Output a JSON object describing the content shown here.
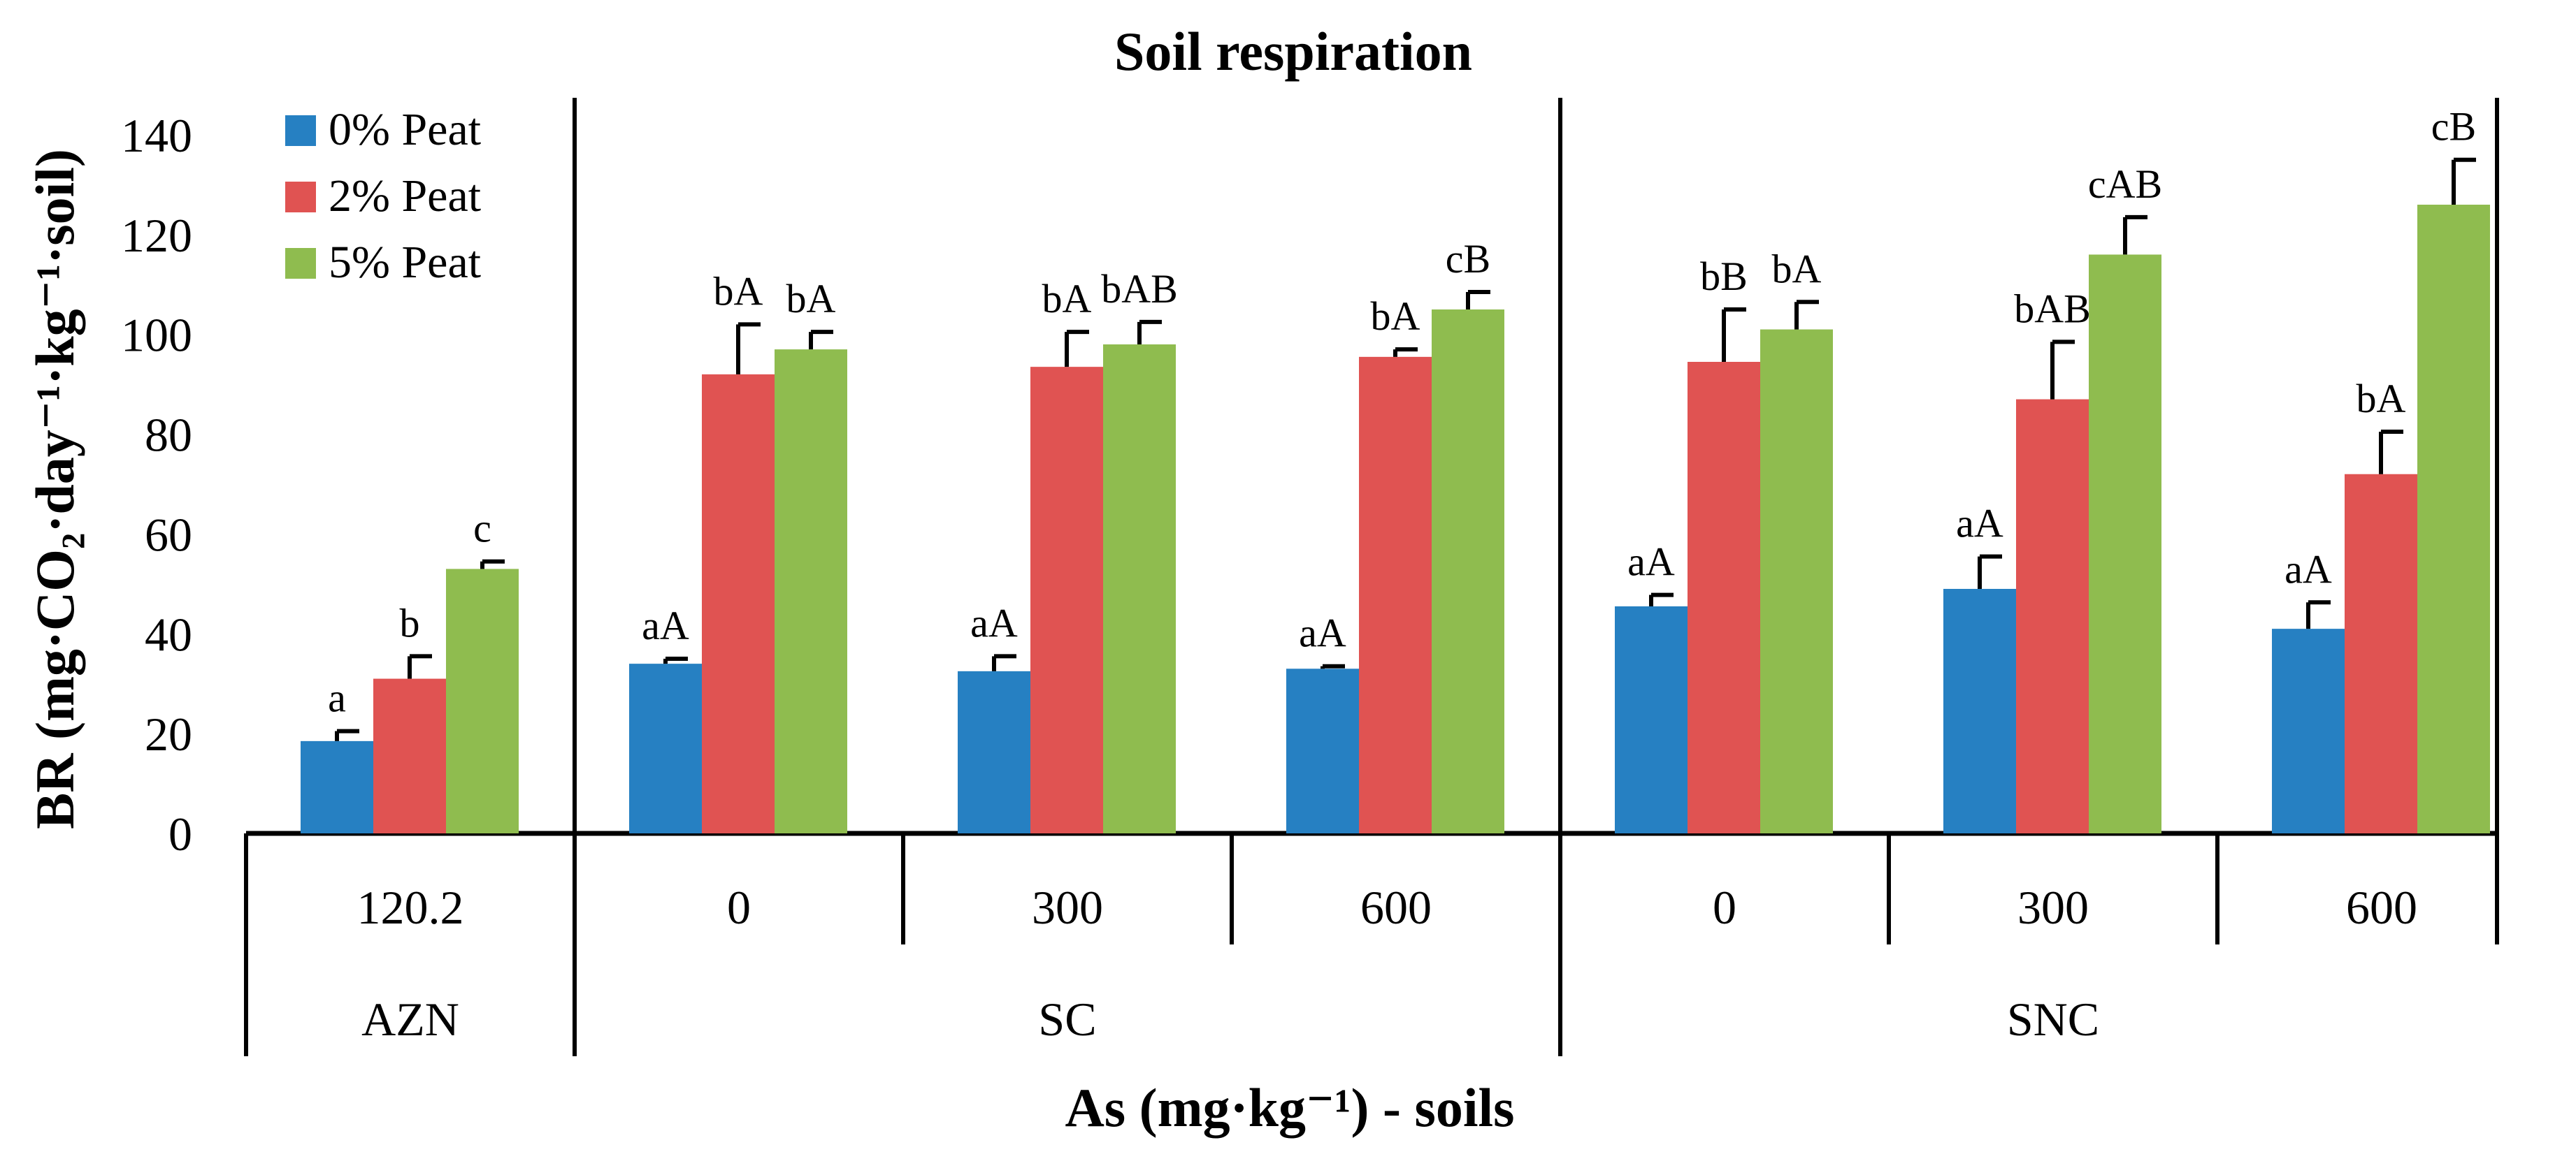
{
  "chart_data": {
    "type": "bar",
    "title": "Soil respiration",
    "xlabel": "As (mg·kg⁻¹) - soils",
    "ylabel": "BR (mg·CO₂·day⁻¹·kg⁻¹·soil)",
    "ylim": [
      0,
      140
    ],
    "yticks": [
      "0",
      "20",
      "40",
      "60",
      "80",
      "100",
      "120",
      "140"
    ],
    "legend_position": "top-left",
    "groups": [
      {
        "name": "AZN",
        "categories": [
          "120.2"
        ]
      },
      {
        "name": "SC",
        "categories": [
          "0",
          "300",
          "600"
        ]
      },
      {
        "name": "SNC",
        "categories": [
          "0",
          "300",
          "600"
        ]
      }
    ],
    "series": [
      {
        "name": "0% Peat",
        "color": "#2680c2",
        "values": [
          18.5,
          34,
          32.5,
          33,
          45.5,
          49,
          41
        ],
        "errors": [
          2,
          1,
          3,
          0.5,
          2.3,
          6.5,
          5.3
        ],
        "labels": [
          "a",
          "aA",
          "aA",
          "aA",
          "aA",
          "aA",
          "aA"
        ]
      },
      {
        "name": "2% Peat",
        "color": "#e05352",
        "values": [
          31,
          92,
          93.5,
          95.5,
          94.5,
          87,
          72
        ],
        "errors": [
          4.5,
          10,
          7,
          1.5,
          10.5,
          11.5,
          8.5
        ],
        "labels": [
          "b",
          "bA",
          "bA",
          "bA",
          "bB",
          "bAB",
          "bA"
        ]
      },
      {
        "name": "5% Peat",
        "color": "#8fbc4f",
        "values": [
          53,
          97,
          98,
          105,
          101,
          116,
          126
        ],
        "errors": [
          1.5,
          3.5,
          4.5,
          3.5,
          5.5,
          7.5,
          9
        ],
        "labels": [
          "c",
          "bA",
          "bAB",
          "cB",
          "bA",
          "cAB",
          "cB"
        ]
      }
    ]
  }
}
